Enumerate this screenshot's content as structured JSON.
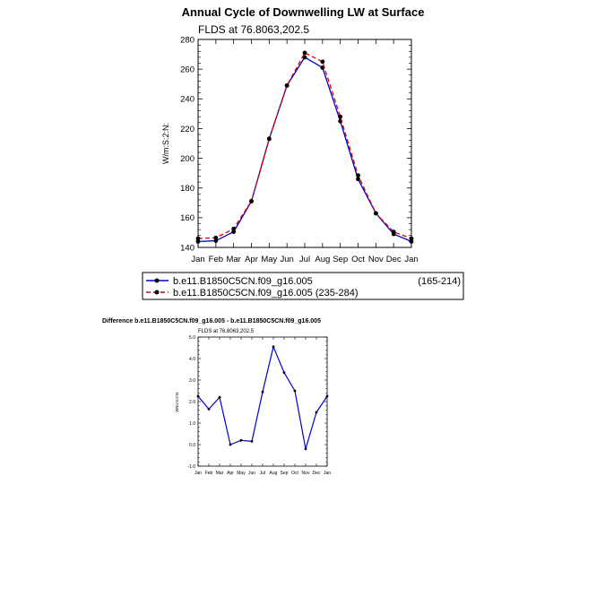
{
  "chart_data": [
    {
      "type": "line",
      "title": "Annual Cycle of Downwelling LW at Surface",
      "subtitle": "FLDS at 76.8063,202.5",
      "xlabel": "",
      "ylabel": "W/m:S:2:N:",
      "categories": [
        "Jan",
        "Feb",
        "Mar",
        "Apr",
        "May",
        "Jun",
        "Jul",
        "Aug",
        "Sep",
        "Oct",
        "Nov",
        "Dec",
        "Jan"
      ],
      "ylim": [
        140,
        280
      ],
      "yticks": [
        140,
        160,
        180,
        200,
        220,
        240,
        260,
        280
      ],
      "series": [
        {
          "name": "b.e11.B1850C5CN.f09_g16.005",
          "range_label": "(165-214)",
          "color": "#0000cc",
          "dash": "solid",
          "values": [
            144.0,
            144.5,
            150.5,
            171.0,
            213.0,
            249.0,
            268.0,
            261.0,
            225.0,
            186.0,
            163.0,
            149.0,
            144.0
          ]
        },
        {
          "name": "b.e11.B1850C5CN.f09_g16.005",
          "range_label": "(235-284)",
          "color": "#dd0000",
          "dash": "dashed",
          "values": [
            146.0,
            146.5,
            152.5,
            171.2,
            213.2,
            249.0,
            271.0,
            265.0,
            228.0,
            188.5,
            163.0,
            150.5,
            146.0
          ]
        }
      ],
      "legend_placement": "below"
    },
    {
      "type": "line",
      "title": "Difference b.e11.B1850C5CN.f09_g16.005 - b.e11.B1850C5CN.f09_g16.005",
      "subtitle": "FLDS at 76.8063,202.5",
      "xlabel": "",
      "ylabel": "W/m:S:2:N:",
      "categories": [
        "Jan",
        "Feb",
        "Mar",
        "Apr",
        "May",
        "Jun",
        "Jul",
        "Aug",
        "Sep",
        "Oct",
        "Nov",
        "Dec",
        "Jan"
      ],
      "ylim": [
        -1.0,
        5.0
      ],
      "yticks": [
        -1.0,
        0.0,
        1.0,
        2.0,
        3.0,
        4.0,
        5.0
      ],
      "ytick_labels": [
        "-1.0",
        "0.0",
        "1.0",
        "2.0",
        "3.0",
        "4.0",
        "5.0"
      ],
      "series": [
        {
          "color": "#0000cc",
          "values": [
            2.25,
            1.65,
            2.2,
            0.0,
            0.2,
            0.15,
            2.45,
            4.55,
            3.35,
            2.5,
            -0.2,
            1.5,
            2.25
          ]
        }
      ]
    }
  ]
}
